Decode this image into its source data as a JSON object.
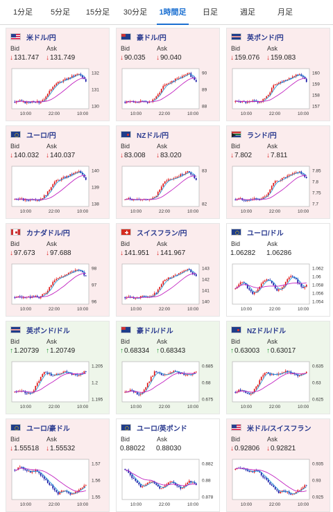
{
  "tabs": [
    {
      "label": "1分足",
      "active": false
    },
    {
      "label": "5分足",
      "active": false
    },
    {
      "label": "15分足",
      "active": false
    },
    {
      "label": "30分足",
      "active": false
    },
    {
      "label": "1時間足",
      "active": true
    },
    {
      "label": "日足",
      "active": false
    },
    {
      "label": "週足",
      "active": false
    },
    {
      "label": "月足",
      "active": false
    }
  ],
  "labels": {
    "bid": "Bid",
    "ask": "Ask"
  },
  "colors": {
    "candle_up": "#e01818",
    "candle_down": "#1a1aa8",
    "ma_short": "#2a9ad8",
    "ma_long": "#c020c0",
    "down_bg": "#fbeced",
    "up_bg": "#eef6ea"
  },
  "cards": [
    {
      "pair": "米ドル/円",
      "flag": "us",
      "trend": "down",
      "bid": "131.747",
      "ask": "131.749",
      "yticks": [
        "132",
        "131",
        "130"
      ],
      "xticks": [
        "10:00",
        "22:00",
        "10:00"
      ],
      "chart_data": {
        "type": "candlestick",
        "shape": "rally",
        "yticks": [
          132,
          131,
          130
        ]
      }
    },
    {
      "pair": "豪ドル/円",
      "flag": "au",
      "trend": "down",
      "bid": "90.035",
      "ask": "90.040",
      "yticks": [
        "90",
        "89",
        "88"
      ],
      "xticks": [
        "10:00",
        "22:00",
        "10:00"
      ],
      "chart_data": {
        "type": "candlestick",
        "shape": "rally",
        "yticks": [
          90,
          89,
          88
        ]
      }
    },
    {
      "pair": "英ポンド/円",
      "flag": "gb",
      "trend": "down",
      "bid": "159.076",
      "ask": "159.083",
      "yticks": [
        "160",
        "159",
        "158",
        "157"
      ],
      "xticks": [
        "10:00",
        "22:00",
        "10:00"
      ],
      "chart_data": {
        "type": "candlestick",
        "shape": "rally",
        "yticks": [
          160,
          159,
          158,
          157
        ]
      }
    },
    {
      "pair": "ユーロ/円",
      "flag": "eu",
      "trend": "down",
      "bid": "140.032",
      "ask": "140.037",
      "yticks": [
        "140",
        "139",
        "138"
      ],
      "xticks": [
        "10:00",
        "22:00",
        "10:00"
      ],
      "chart_data": {
        "type": "candlestick",
        "shape": "rally",
        "yticks": [
          140,
          139,
          138
        ]
      }
    },
    {
      "pair": "NZドル/円",
      "flag": "nz",
      "trend": "down",
      "bid": "83.008",
      "ask": "83.020",
      "yticks": [
        "83",
        "82"
      ],
      "xticks": [
        "10:00",
        "22:00",
        "10:00"
      ],
      "chart_data": {
        "type": "candlestick",
        "shape": "rally",
        "yticks": [
          83,
          82
        ]
      }
    },
    {
      "pair": "ランド/円",
      "flag": "za",
      "trend": "down",
      "bid": "7.802",
      "ask": "7.811",
      "yticks": [
        "7.85",
        "7.8",
        "7.75",
        "7.7"
      ],
      "xticks": [
        "10:00",
        "22:00",
        "10:00"
      ],
      "chart_data": {
        "type": "candlestick",
        "shape": "rally",
        "yticks": [
          7.85,
          7.8,
          7.75,
          7.7
        ]
      }
    },
    {
      "pair": "カナダドル/円",
      "flag": "ca",
      "trend": "down",
      "bid": "97.673",
      "ask": "97.688",
      "yticks": [
        "98",
        "97",
        "96"
      ],
      "xticks": [
        "10:00",
        "22:00",
        "10:00"
      ],
      "chart_data": {
        "type": "candlestick",
        "shape": "rally",
        "yticks": [
          98,
          97,
          96
        ]
      }
    },
    {
      "pair": "スイスフラン/円",
      "flag": "ch",
      "trend": "down",
      "bid": "141.951",
      "ask": "141.967",
      "yticks": [
        "143",
        "142",
        "141",
        "140"
      ],
      "xticks": [
        "10:00",
        "22:00",
        "10:00"
      ],
      "chart_data": {
        "type": "candlestick",
        "shape": "rally",
        "yticks": [
          143,
          142,
          141,
          140
        ]
      }
    },
    {
      "pair": "ユーロ/ドル",
      "flag": "eu",
      "trend": "flat",
      "bid": "1.06282",
      "ask": "1.06286",
      "yticks": [
        "1.062",
        "1.06",
        "1.058",
        "1.056",
        "1.054"
      ],
      "xticks": [
        "10:00",
        "22:00",
        "10:00"
      ],
      "chart_data": {
        "type": "candlestick",
        "shape": "choppy",
        "yticks": [
          1.062,
          1.06,
          1.058,
          1.056,
          1.054
        ]
      }
    },
    {
      "pair": "英ポンド/ドル",
      "flag": "gb",
      "trend": "up",
      "bid": "1.20739",
      "ask": "1.20749",
      "yticks": [
        "1.205",
        "1.2",
        "1.195"
      ],
      "xticks": [
        "10:00",
        "22:00",
        "10:00"
      ],
      "chart_data": {
        "type": "candlestick",
        "shape": "rise_plateau",
        "yticks": [
          1.205,
          1.2,
          1.195
        ]
      }
    },
    {
      "pair": "豪ドル/ドル",
      "flag": "au",
      "trend": "up",
      "bid": "0.68334",
      "ask": "0.68343",
      "yticks": [
        "0.685",
        "0.68",
        "0.675"
      ],
      "xticks": [
        "10:00",
        "22:00",
        "10:00"
      ],
      "chart_data": {
        "type": "candlestick",
        "shape": "rise_plateau",
        "yticks": [
          0.685,
          0.68,
          0.675
        ]
      }
    },
    {
      "pair": "NZドル/ドル",
      "flag": "nz",
      "trend": "up",
      "bid": "0.63003",
      "ask": "0.63017",
      "yticks": [
        "0.635",
        "0.63",
        "0.625"
      ],
      "xticks": [
        "10:00",
        "22:00",
        "10:00"
      ],
      "chart_data": {
        "type": "candlestick",
        "shape": "rise_plateau",
        "yticks": [
          0.635,
          0.63,
          0.625
        ]
      }
    },
    {
      "pair": "ユーロ/豪ドル",
      "flag": "eu",
      "trend": "down",
      "bid": "1.55518",
      "ask": "1.55532",
      "yticks": [
        "1.57",
        "1.56",
        "1.55"
      ],
      "xticks": [
        "10:00",
        "22:00",
        "10:00"
      ],
      "chart_data": {
        "type": "candlestick",
        "shape": "decline",
        "yticks": [
          1.57,
          1.56,
          1.55
        ]
      }
    },
    {
      "pair": "ユーロ/英ポンド",
      "flag": "eu",
      "trend": "flat",
      "bid": "0.88022",
      "ask": "0.88030",
      "yticks": [
        "0.882",
        "0.88",
        "0.878"
      ],
      "xticks": [
        "10:00",
        "22:00",
        "10:00"
      ],
      "chart_data": {
        "type": "candlestick",
        "shape": "dip_flat",
        "yticks": [
          0.882,
          0.88,
          0.878
        ]
      }
    },
    {
      "pair": "米ドル/スイスフラン",
      "flag": "us",
      "trend": "down",
      "bid": "0.92806",
      "ask": "0.92821",
      "yticks": [
        "0.935",
        "0.93",
        "0.925"
      ],
      "xticks": [
        "10:00",
        "22:00",
        "10:00"
      ],
      "chart_data": {
        "type": "candlestick",
        "shape": "decline",
        "yticks": [
          0.935,
          0.93,
          0.925
        ]
      }
    }
  ]
}
